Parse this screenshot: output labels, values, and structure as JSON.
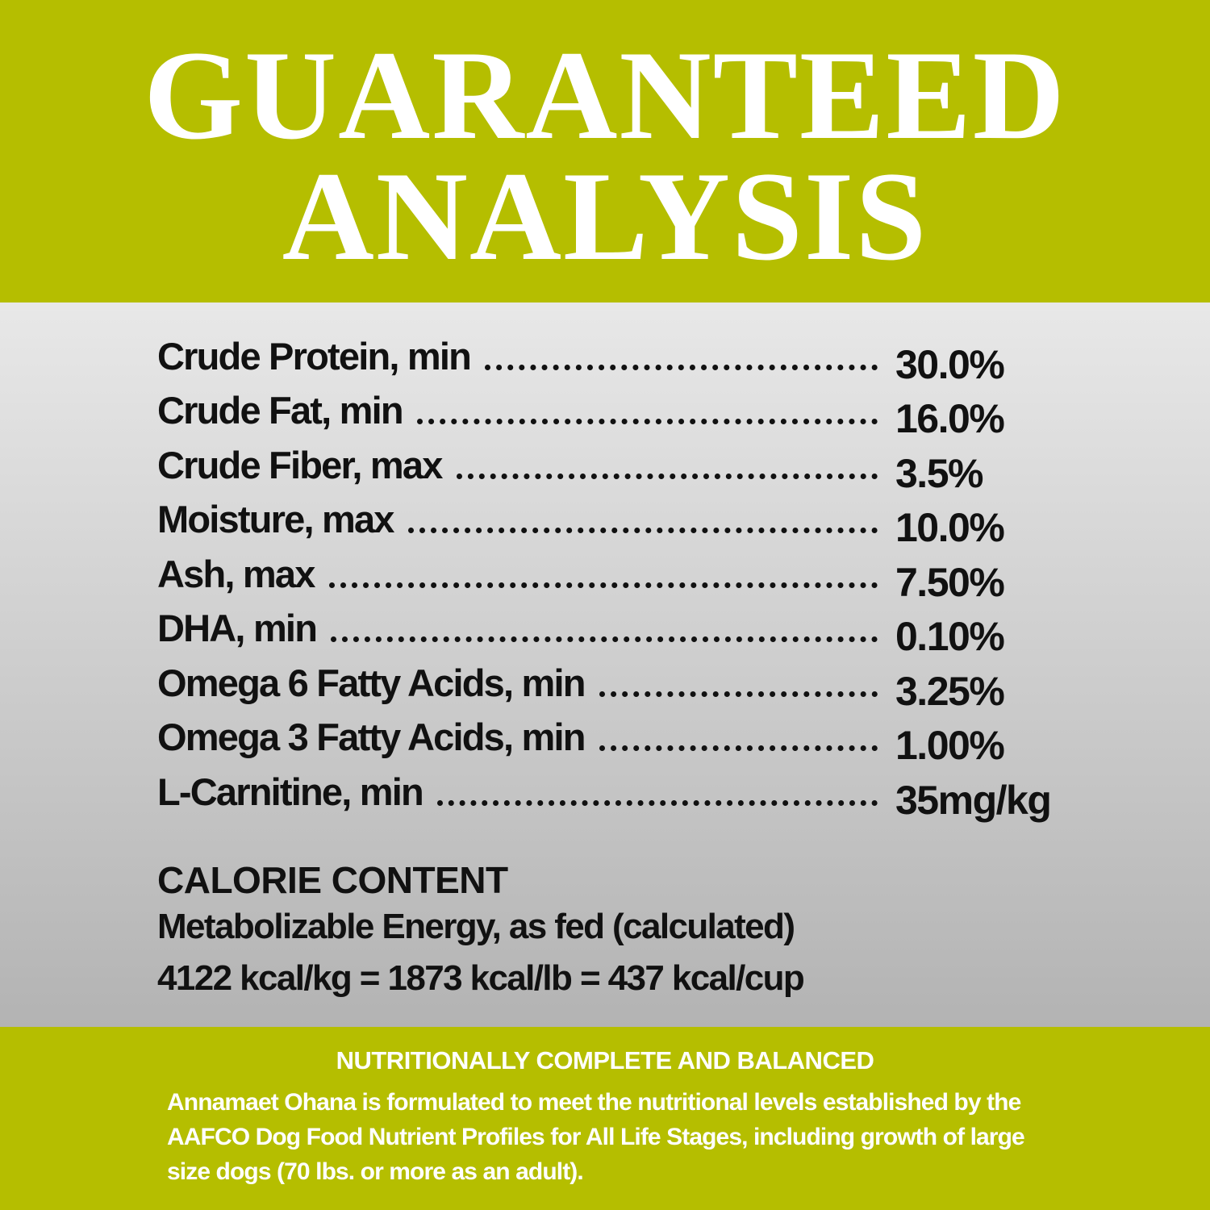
{
  "header": {
    "title_line1": "GUARANTEED",
    "title_line2": "ANALYSIS"
  },
  "analysis": [
    {
      "label": "Crude Protein, min",
      "value": "30.0%"
    },
    {
      "label": "Crude Fat, min",
      "value": "16.0%"
    },
    {
      "label": "Crude Fiber, max",
      "value": "3.5%"
    },
    {
      "label": "Moisture, max",
      "value": "10.0%"
    },
    {
      "label": "Ash, max",
      "value": "7.50%"
    },
    {
      "label": "DHA, min",
      "value": "0.10%"
    },
    {
      "label": "Omega 6 Fatty Acids, min",
      "value": "3.25%"
    },
    {
      "label": "Omega 3 Fatty Acids, min",
      "value": "1.00%"
    },
    {
      "label": "L-Carnitine, min",
      "value": "35mg/kg"
    }
  ],
  "calorie": {
    "heading": "CALORIE CONTENT",
    "line1": "Metabolizable Energy, as fed (calculated)",
    "line2": "4122 kcal/kg = 1873 kcal/lb = 437 kcal/cup"
  },
  "footer": {
    "heading": "NUTRITIONALLY COMPLETE AND BALANCED",
    "text": "Annamaet Ohana is formulated to meet the nutritional levels established by the AAFCO Dog Food Nutrient Profiles for All Life Stages, including growth of large size dogs (70 lbs. or more as an adult)."
  },
  "colors": {
    "brand_green": "#b5be00",
    "text": "#111111",
    "background_gray": "#d0d0d0"
  }
}
